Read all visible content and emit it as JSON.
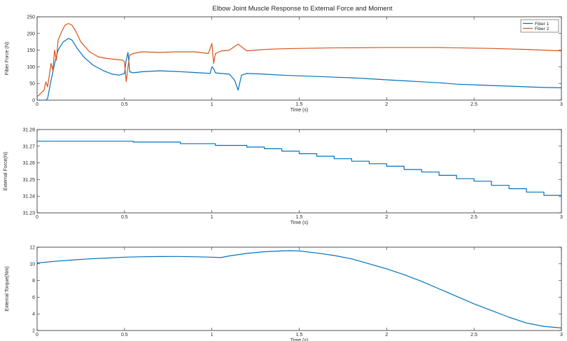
{
  "chart_data": [
    {
      "type": "line",
      "title": "Elbow Joint Muscle Response to External Force and Moment",
      "xlabel": "Time (s)",
      "ylabel": "Fiber Force (N)",
      "xlim": [
        0,
        3
      ],
      "ylim": [
        0,
        250
      ],
      "xticks": [
        0,
        0.5,
        1,
        1.5,
        2,
        2.5,
        3
      ],
      "xtick_labels": [
        "0",
        "0.5",
        "1",
        "1.5",
        "2",
        "2.5",
        "3"
      ],
      "yticks": [
        0,
        50,
        100,
        150,
        200,
        250
      ],
      "ytick_labels": [
        "0",
        "50",
        "100",
        "150",
        "200",
        "250"
      ],
      "grid": false,
      "legend": "top-right",
      "series": [
        {
          "name": "Fiber 1",
          "color": "#0072BD",
          "x": [
            0,
            0.05,
            0.06,
            0.08,
            0.1,
            0.12,
            0.15,
            0.18,
            0.2,
            0.23,
            0.27,
            0.32,
            0.38,
            0.43,
            0.47,
            0.5,
            0.51,
            0.52,
            0.53,
            0.55,
            0.6,
            0.7,
            0.8,
            0.9,
            0.99,
            1.0,
            1.01,
            1.02,
            1.05,
            1.1,
            1.13,
            1.15,
            1.17,
            1.2,
            1.3,
            1.4,
            1.5,
            1.6,
            1.7,
            1.8,
            1.9,
            2.0,
            2.1,
            2.2,
            2.3,
            2.4,
            2.5,
            2.6,
            2.7,
            2.8,
            2.9,
            3.0
          ],
          "y": [
            0,
            0,
            5,
            60,
            110,
            150,
            175,
            185,
            180,
            155,
            128,
            105,
            88,
            78,
            75,
            80,
            120,
            143,
            85,
            82,
            85,
            88,
            86,
            83,
            80,
            100,
            95,
            82,
            80,
            78,
            60,
            30,
            75,
            80,
            78,
            75,
            73,
            71,
            69,
            67,
            64,
            61,
            58,
            55,
            52,
            48,
            46,
            44,
            42,
            40,
            38,
            37
          ]
        },
        {
          "name": "Fiber 2",
          "color": "#D95319",
          "x": [
            0,
            0.02,
            0.04,
            0.05,
            0.06,
            0.08,
            0.09,
            0.1,
            0.11,
            0.12,
            0.14,
            0.16,
            0.18,
            0.2,
            0.22,
            0.25,
            0.3,
            0.35,
            0.4,
            0.45,
            0.49,
            0.5,
            0.51,
            0.52,
            0.53,
            0.55,
            0.6,
            0.7,
            0.8,
            0.9,
            0.98,
            1.0,
            1.01,
            1.02,
            1.05,
            1.1,
            1.15,
            1.2,
            1.3,
            1.4,
            1.5,
            1.7,
            2.0,
            2.3,
            2.6,
            2.8,
            2.9,
            3.0
          ],
          "y": [
            10,
            20,
            30,
            55,
            40,
            110,
            90,
            150,
            120,
            180,
            205,
            225,
            230,
            225,
            208,
            175,
            145,
            130,
            125,
            122,
            120,
            115,
            55,
            100,
            135,
            140,
            145,
            143,
            145,
            145,
            140,
            170,
            110,
            140,
            147,
            150,
            168,
            148,
            152,
            154,
            155,
            157,
            158,
            158,
            155,
            152,
            150,
            148
          ]
        }
      ]
    },
    {
      "type": "line",
      "title": "",
      "xlabel": "Time (s)",
      "ylabel": "External Force(N)",
      "xlim": [
        0,
        3
      ],
      "ylim": [
        31.23,
        31.28
      ],
      "xticks": [
        0,
        0.5,
        1,
        1.5,
        2,
        2.5,
        3
      ],
      "xtick_labels": [
        "0",
        "0.5",
        "1",
        "1.5",
        "2",
        "2.5",
        "3"
      ],
      "yticks": [
        31.23,
        31.24,
        31.25,
        31.26,
        31.27,
        31.28
      ],
      "ytick_labels": [
        "31.23",
        "31.24",
        "31.25",
        "31.26",
        "31.27",
        "31.28"
      ],
      "grid": false,
      "series": [
        {
          "color": "#0072BD",
          "step": true,
          "x": [
            0,
            0.5,
            0.55,
            0.8,
            0.82,
            1.0,
            1.02,
            1.2,
            1.3,
            1.4,
            1.5,
            1.6,
            1.7,
            1.8,
            1.9,
            2.0,
            2.1,
            2.2,
            2.3,
            2.4,
            2.5,
            2.6,
            2.7,
            2.8,
            2.9,
            3.0
          ],
          "y": [
            31.273,
            31.273,
            31.2725,
            31.2725,
            31.2715,
            31.2715,
            31.2705,
            31.2695,
            31.2685,
            31.267,
            31.2655,
            31.264,
            31.2625,
            31.261,
            31.2595,
            31.258,
            31.256,
            31.2545,
            31.2525,
            31.2505,
            31.249,
            31.2465,
            31.2445,
            31.2425,
            31.2405,
            31.238
          ]
        }
      ]
    },
    {
      "type": "line",
      "title": "",
      "xlabel": "Time (s)",
      "ylabel": "External Torque(Nm)",
      "xlim": [
        0,
        3
      ],
      "ylim": [
        2,
        12
      ],
      "xticks": [
        0,
        0.5,
        1,
        1.5,
        2,
        2.5,
        3
      ],
      "xtick_labels": [
        "0",
        "0.5",
        "1",
        "1.5",
        "2",
        "2.5",
        "3"
      ],
      "yticks": [
        2,
        4,
        6,
        8,
        10,
        12
      ],
      "ytick_labels": [
        "2",
        "4",
        "6",
        "8",
        "10",
        "12"
      ],
      "grid": false,
      "series": [
        {
          "color": "#0072BD",
          "x": [
            0,
            0.1,
            0.2,
            0.3,
            0.4,
            0.5,
            0.6,
            0.7,
            0.8,
            0.9,
            1.0,
            1.05,
            1.1,
            1.2,
            1.3,
            1.4,
            1.45,
            1.5,
            1.6,
            1.7,
            1.8,
            1.9,
            2.0,
            2.1,
            2.2,
            2.3,
            2.4,
            2.5,
            2.6,
            2.7,
            2.8,
            2.9,
            3.0
          ],
          "y": [
            10.1,
            10.3,
            10.45,
            10.6,
            10.7,
            10.8,
            10.85,
            10.87,
            10.88,
            10.85,
            10.8,
            10.75,
            10.95,
            11.25,
            11.45,
            11.55,
            11.58,
            11.55,
            11.3,
            11.0,
            10.6,
            10.0,
            9.4,
            8.7,
            7.9,
            7.0,
            6.1,
            5.2,
            4.4,
            3.6,
            2.9,
            2.5,
            2.3
          ]
        }
      ]
    }
  ]
}
